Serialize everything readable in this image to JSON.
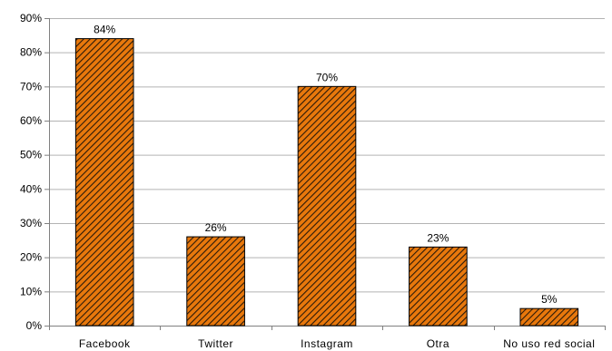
{
  "chart_data": {
    "type": "bar",
    "title": "",
    "xlabel": "",
    "ylabel": "",
    "categories": [
      "Facebook",
      "Twitter",
      "Instagram",
      "Otra",
      "No uso red social"
    ],
    "values": [
      84,
      26,
      70,
      23,
      5
    ],
    "data_labels": [
      "84%",
      "26%",
      "70%",
      "23%",
      "5%"
    ],
    "ylim": [
      0,
      90
    ],
    "yticks": [
      0,
      10,
      20,
      30,
      40,
      50,
      60,
      70,
      80,
      90
    ],
    "ytick_labels": [
      "0%",
      "10%",
      "20%",
      "30%",
      "40%",
      "50%",
      "60%",
      "70%",
      "80%",
      "90%"
    ],
    "grid": true,
    "legend": "none",
    "bar_color": "#e8780c",
    "hatch_color": "#2a1a0a",
    "gridline_color": "#b3b3b3"
  }
}
